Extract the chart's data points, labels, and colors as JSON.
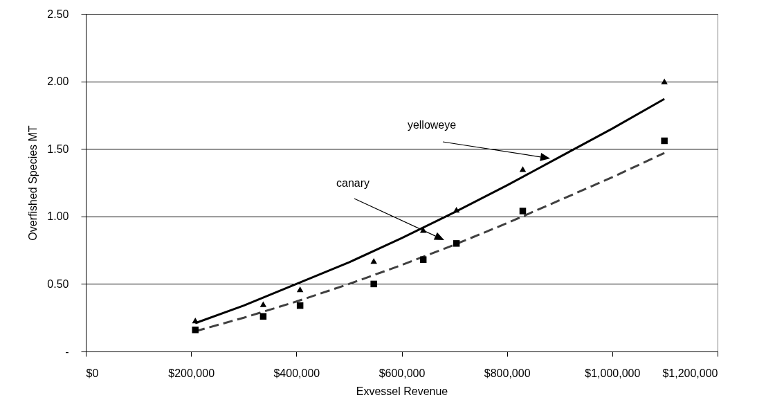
{
  "chart_data": {
    "type": "scatter",
    "xlabel": "Exvessel Revenue",
    "ylabel": "Overfished Species MT",
    "xlim": [
      0,
      1200000
    ],
    "ylim": [
      0,
      2.5
    ],
    "xticks": [
      {
        "value": 0,
        "label": "$0"
      },
      {
        "value": 200000,
        "label": "$200,000"
      },
      {
        "value": 400000,
        "label": "$400,000"
      },
      {
        "value": 600000,
        "label": "$600,000"
      },
      {
        "value": 800000,
        "label": "$800,000"
      },
      {
        "value": 1000000,
        "label": "$1,000,000"
      },
      {
        "value": 1200000,
        "label": "$1,200,000"
      }
    ],
    "yticks": [
      {
        "value": 0,
        "label": "-"
      },
      {
        "value": 0.5,
        "label": "0.50"
      },
      {
        "value": 1,
        "label": "1.00"
      },
      {
        "value": 1.5,
        "label": "1.50"
      },
      {
        "value": 2,
        "label": "2.00"
      },
      {
        "value": 2.5,
        "label": "2.50"
      }
    ],
    "grid": "y",
    "series": [
      {
        "marker": "triangle",
        "color": "#000000",
        "x": [
          208000,
          337000,
          407000,
          547000,
          641000,
          704000,
          830000,
          1099000
        ],
        "values": [
          0.23,
          0.35,
          0.46,
          0.67,
          0.9,
          1.05,
          1.35,
          2.0
        ]
      },
      {
        "marker": "square",
        "color": "#000000",
        "x": [
          208000,
          337000,
          407000,
          547000,
          641000,
          704000,
          830000,
          1099000
        ],
        "values": [
          0.16,
          0.26,
          0.34,
          0.5,
          0.68,
          0.8,
          1.04,
          1.56
        ]
      },
      {
        "type": "line",
        "line_style": "solid",
        "color": "#000000",
        "x": [
          208000,
          300000,
          400000,
          500000,
          600000,
          700000,
          800000,
          900000,
          1000000,
          1099000
        ],
        "values": [
          0.21,
          0.34,
          0.5,
          0.66,
          0.84,
          1.03,
          1.23,
          1.44,
          1.65,
          1.87
        ]
      },
      {
        "type": "line",
        "line_style": "dashed",
        "color": "#404040",
        "x": [
          208000,
          300000,
          400000,
          500000,
          600000,
          700000,
          800000,
          900000,
          1000000,
          1099000
        ],
        "values": [
          0.15,
          0.25,
          0.37,
          0.5,
          0.64,
          0.79,
          0.95,
          1.12,
          1.29,
          1.47
        ]
      }
    ],
    "annotations": [
      "yelloweye",
      "canary"
    ]
  }
}
